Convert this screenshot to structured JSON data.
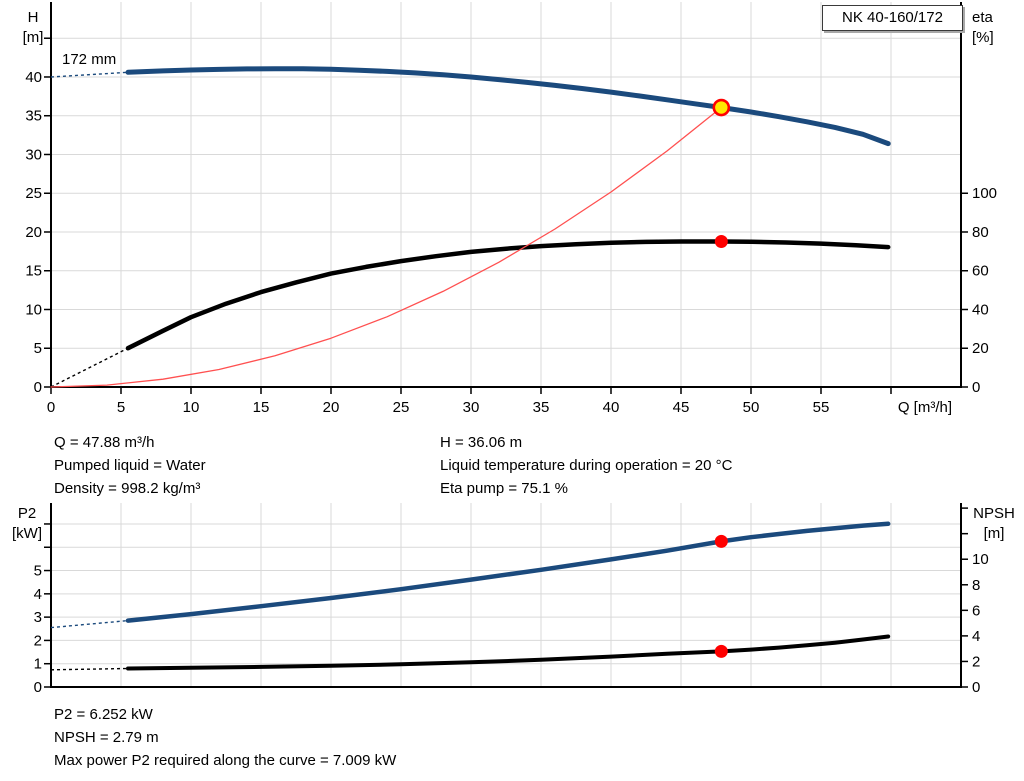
{
  "title_box": {
    "model": "NK 40-160/172"
  },
  "info_top": {
    "left": [
      "Q = 47.88 m³/h",
      "Pumped liquid = Water",
      "Density = 998.2 kg/m³"
    ],
    "right": [
      "H = 36.06 m",
      "Liquid temperature during operation = 20 °C",
      "Eta pump = 75.1 %"
    ]
  },
  "info_bottom": [
    "P2 = 6.252 kW",
    "NPSH = 2.79 m",
    "Max power P2 required along the curve = 7.009 kW"
  ],
  "colors": {
    "curve_blue": "#1b4a7d",
    "curve_black": "#000000",
    "system_curve_red": "#ff5050",
    "duty_point_red": "#ff0000",
    "duty_point_yellow": "#ffe800",
    "grid": "#d9d9d9",
    "axis": "#000000"
  },
  "chart_data": [
    {
      "name": "qh-efficiency-chart",
      "type": "line",
      "title": "",
      "x_axis": {
        "label": "Q [m³/h]",
        "min": 0,
        "max": 65,
        "grid_ticks": [
          5,
          10,
          15,
          20,
          25,
          30,
          35,
          40,
          45,
          50,
          55,
          60
        ],
        "labeled_ticks": [
          0,
          5,
          10,
          15,
          20,
          25,
          30,
          35,
          40,
          45,
          50,
          55
        ],
        "show_labels": true
      },
      "y_left": {
        "title": [
          "H",
          "[m]"
        ],
        "min": 0,
        "max": 48.9,
        "labeled_ticks": [
          0,
          5,
          10,
          15,
          20,
          25,
          30,
          35,
          40
        ],
        "unlabeled_ticks": [
          45
        ]
      },
      "y_right": {
        "title": [
          "eta",
          "[%]"
        ],
        "min": 0,
        "max": 195.6,
        "labeled_ticks": [
          0,
          20,
          40,
          60,
          80,
          100
        ],
        "unlabeled_ticks": []
      },
      "series": [
        {
          "name": "head-curve",
          "label": "172 mm",
          "axis": "left",
          "color": "#1b4a7d",
          "width": 5,
          "dash_lead": [
            [
              0,
              40.0
            ],
            [
              5.5,
              40.6
            ]
          ],
          "points": [
            [
              5.5,
              40.6
            ],
            [
              8,
              40.78
            ],
            [
              10,
              40.9
            ],
            [
              12,
              40.98
            ],
            [
              14,
              41.04
            ],
            [
              16,
              41.07
            ],
            [
              18,
              41.05
            ],
            [
              20,
              41.0
            ],
            [
              22,
              40.88
            ],
            [
              24,
              40.72
            ],
            [
              26,
              40.52
            ],
            [
              28,
              40.28
            ],
            [
              30,
              40.0
            ],
            [
              32,
              39.66
            ],
            [
              34,
              39.3
            ],
            [
              36,
              38.92
            ],
            [
              38,
              38.5
            ],
            [
              40,
              38.05
            ],
            [
              42,
              37.56
            ],
            [
              44,
              37.05
            ],
            [
              46,
              36.54
            ],
            [
              47.88,
              36.06
            ],
            [
              50,
              35.48
            ],
            [
              52,
              34.88
            ],
            [
              54,
              34.22
            ],
            [
              56,
              33.5
            ],
            [
              58,
              32.6
            ],
            [
              59.8,
              31.4
            ]
          ]
        },
        {
          "name": "efficiency-curve",
          "label": "",
          "axis": "right",
          "color": "#000000",
          "width": 4.5,
          "dash_lead": [
            [
              0,
              0
            ],
            [
              5.5,
              20
            ]
          ],
          "points": [
            [
              5.5,
              20
            ],
            [
              8,
              29
            ],
            [
              10,
              36
            ],
            [
              12.5,
              43
            ],
            [
              15,
              49
            ],
            [
              17.5,
              54
            ],
            [
              20,
              58.5
            ],
            [
              22.5,
              62
            ],
            [
              25,
              65
            ],
            [
              27.5,
              67.5
            ],
            [
              30,
              69.7
            ],
            [
              32.5,
              71.4
            ],
            [
              35,
              72.7
            ],
            [
              37.5,
              73.7
            ],
            [
              40,
              74.4
            ],
            [
              42.5,
              74.9
            ],
            [
              45,
              75.1
            ],
            [
              47.88,
              75.1
            ],
            [
              50,
              75.0
            ],
            [
              52.5,
              74.6
            ],
            [
              55,
              74.0
            ],
            [
              57.5,
              73.2
            ],
            [
              59.8,
              72.2
            ]
          ]
        },
        {
          "name": "system-curve",
          "label": "",
          "axis": "left",
          "color": "#ff5050",
          "width": 1.3,
          "dash_lead": null,
          "points": [
            [
              0,
              0
            ],
            [
              4,
              0.25
            ],
            [
              8,
              1.01
            ],
            [
              12,
              2.26
            ],
            [
              16,
              4.03
            ],
            [
              20,
              6.29
            ],
            [
              24,
              9.06
            ],
            [
              28,
              12.33
            ],
            [
              32,
              16.1
            ],
            [
              36,
              20.38
            ],
            [
              40,
              25.16
            ],
            [
              44,
              30.45
            ],
            [
              47.88,
              36.06
            ]
          ]
        }
      ],
      "markers": [
        {
          "name": "duty-point-head",
          "x": 47.88,
          "value": 36.06,
          "axis": "left",
          "fill": "#ffe800",
          "stroke": "#ff0000",
          "stroke_width": 2.6,
          "r": 7.5
        },
        {
          "name": "duty-point-efficiency",
          "x": 47.88,
          "value": 75.1,
          "axis": "right",
          "fill": "#ff0000",
          "stroke": "none",
          "stroke_width": 0,
          "r": 6.5
        }
      ]
    },
    {
      "name": "power-npsh-chart",
      "type": "line",
      "title": "",
      "x_axis": {
        "label": "",
        "min": 0,
        "max": 65,
        "grid_ticks": [
          5,
          10,
          15,
          20,
          25,
          30,
          35,
          40,
          45,
          50,
          55,
          60
        ],
        "labeled_ticks": [],
        "show_labels": false
      },
      "y_left": {
        "title": [
          "P2",
          "[kW]"
        ],
        "min": 0,
        "max": 7.9,
        "labeled_ticks": [
          0,
          1,
          2,
          3,
          4,
          5
        ],
        "unlabeled_ticks": [
          6,
          7
        ]
      },
      "y_right": {
        "title": [
          "NPSH",
          "[m]"
        ],
        "min": 0,
        "max": 14.4,
        "labeled_ticks": [
          0,
          2,
          4,
          6,
          8,
          10
        ],
        "unlabeled_ticks": [
          12,
          14
        ]
      },
      "grid_y_ticks": [
        1,
        2,
        3,
        4,
        5,
        6,
        7
      ],
      "series": [
        {
          "name": "p2-curve",
          "label": "",
          "axis": "left",
          "color": "#1b4a7d",
          "width": 4.5,
          "dash_lead": [
            [
              0,
              2.55
            ],
            [
              5.5,
              2.85
            ]
          ],
          "points": [
            [
              5.5,
              2.85
            ],
            [
              10,
              3.13
            ],
            [
              15,
              3.47
            ],
            [
              20,
              3.82
            ],
            [
              25,
              4.2
            ],
            [
              30,
              4.61
            ],
            [
              35,
              5.03
            ],
            [
              40,
              5.48
            ],
            [
              44,
              5.85
            ],
            [
              47.88,
              6.252
            ],
            [
              50,
              6.43
            ],
            [
              52,
              6.57
            ],
            [
              54,
              6.7
            ],
            [
              56,
              6.82
            ],
            [
              58,
              6.93
            ],
            [
              59.8,
              7.009
            ]
          ]
        },
        {
          "name": "npsh-curve",
          "label": "",
          "axis": "right",
          "color": "#000000",
          "width": 4,
          "dash_lead": [
            [
              0,
              1.35
            ],
            [
              5.5,
              1.45
            ]
          ],
          "points": [
            [
              5.5,
              1.45
            ],
            [
              10,
              1.5
            ],
            [
              15,
              1.57
            ],
            [
              20,
              1.66
            ],
            [
              25,
              1.78
            ],
            [
              30,
              1.93
            ],
            [
              35,
              2.13
            ],
            [
              40,
              2.38
            ],
            [
              44,
              2.6
            ],
            [
              47.88,
              2.79
            ],
            [
              50,
              2.93
            ],
            [
              52,
              3.08
            ],
            [
              54,
              3.26
            ],
            [
              56,
              3.47
            ],
            [
              58,
              3.72
            ],
            [
              59.8,
              3.95
            ]
          ]
        }
      ],
      "markers": [
        {
          "name": "duty-point-p2",
          "x": 47.88,
          "value": 6.252,
          "axis": "left",
          "fill": "#ff0000",
          "stroke": "none",
          "stroke_width": 0,
          "r": 6.5
        },
        {
          "name": "duty-point-npsh",
          "x": 47.88,
          "value": 2.79,
          "axis": "right",
          "fill": "#ff0000",
          "stroke": "none",
          "stroke_width": 0,
          "r": 6.5
        }
      ]
    }
  ]
}
